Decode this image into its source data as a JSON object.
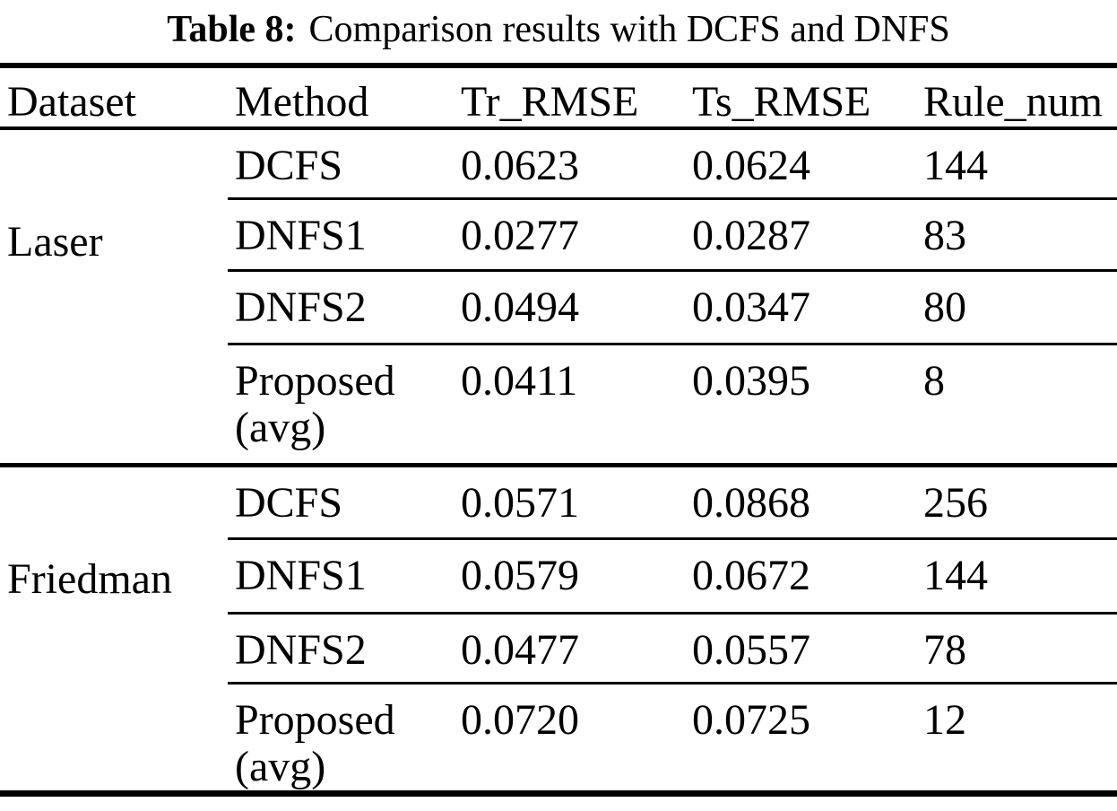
{
  "title": {
    "label": "Table 8:",
    "text": "Comparison results with DCFS and DNFS"
  },
  "table": {
    "columns": [
      "Dataset",
      "Method",
      "Tr_RMSE",
      "Ts_RMSE",
      "Rule_num"
    ],
    "sections": [
      {
        "dataset": "Laser",
        "rows": [
          {
            "method": "DCFS",
            "tr_rmse": "0.0623",
            "ts_rmse": "0.0624",
            "rule_num": "144"
          },
          {
            "method": "DNFS1",
            "tr_rmse": "0.0277",
            "ts_rmse": "0.0287",
            "rule_num": "83"
          },
          {
            "method": "DNFS2",
            "tr_rmse": "0.0494",
            "ts_rmse": "0.0347",
            "rule_num": "80"
          },
          {
            "method": "Proposed (avg)",
            "tr_rmse": "0.0411",
            "ts_rmse": "0.0395",
            "rule_num": "8"
          }
        ]
      },
      {
        "dataset": "Friedman",
        "rows": [
          {
            "method": "DCFS",
            "tr_rmse": "0.0571",
            "ts_rmse": "0.0868",
            "rule_num": "256"
          },
          {
            "method": "DNFS1",
            "tr_rmse": "0.0579",
            "ts_rmse": "0.0672",
            "rule_num": "144"
          },
          {
            "method": "DNFS2",
            "tr_rmse": "0.0477",
            "ts_rmse": "0.0557",
            "rule_num": "78"
          },
          {
            "method": "Proposed (avg)",
            "tr_rmse": "0.0720",
            "ts_rmse": "0.0725",
            "rule_num": "12"
          }
        ]
      }
    ]
  },
  "chart_data": {
    "type": "table",
    "title": "Table 8: Comparison results with DCFS and DNFS",
    "columns": [
      "Dataset",
      "Method",
      "Tr_RMSE",
      "Ts_RMSE",
      "Rule_num"
    ],
    "rows": [
      [
        "Laser",
        "DCFS",
        0.0623,
        0.0624,
        144
      ],
      [
        "Laser",
        "DNFS1",
        0.0277,
        0.0287,
        83
      ],
      [
        "Laser",
        "DNFS2",
        0.0494,
        0.0347,
        80
      ],
      [
        "Laser",
        "Proposed (avg)",
        0.0411,
        0.0395,
        8
      ],
      [
        "Friedman",
        "DCFS",
        0.0571,
        0.0868,
        256
      ],
      [
        "Friedman",
        "DNFS1",
        0.0579,
        0.0672,
        144
      ],
      [
        "Friedman",
        "DNFS2",
        0.0477,
        0.0557,
        78
      ],
      [
        "Friedman",
        "Proposed (avg)",
        0.072,
        0.0725,
        12
      ]
    ],
    "colors": {
      "text": "#000000",
      "background": "#ffffff",
      "rules": "#000000"
    }
  }
}
